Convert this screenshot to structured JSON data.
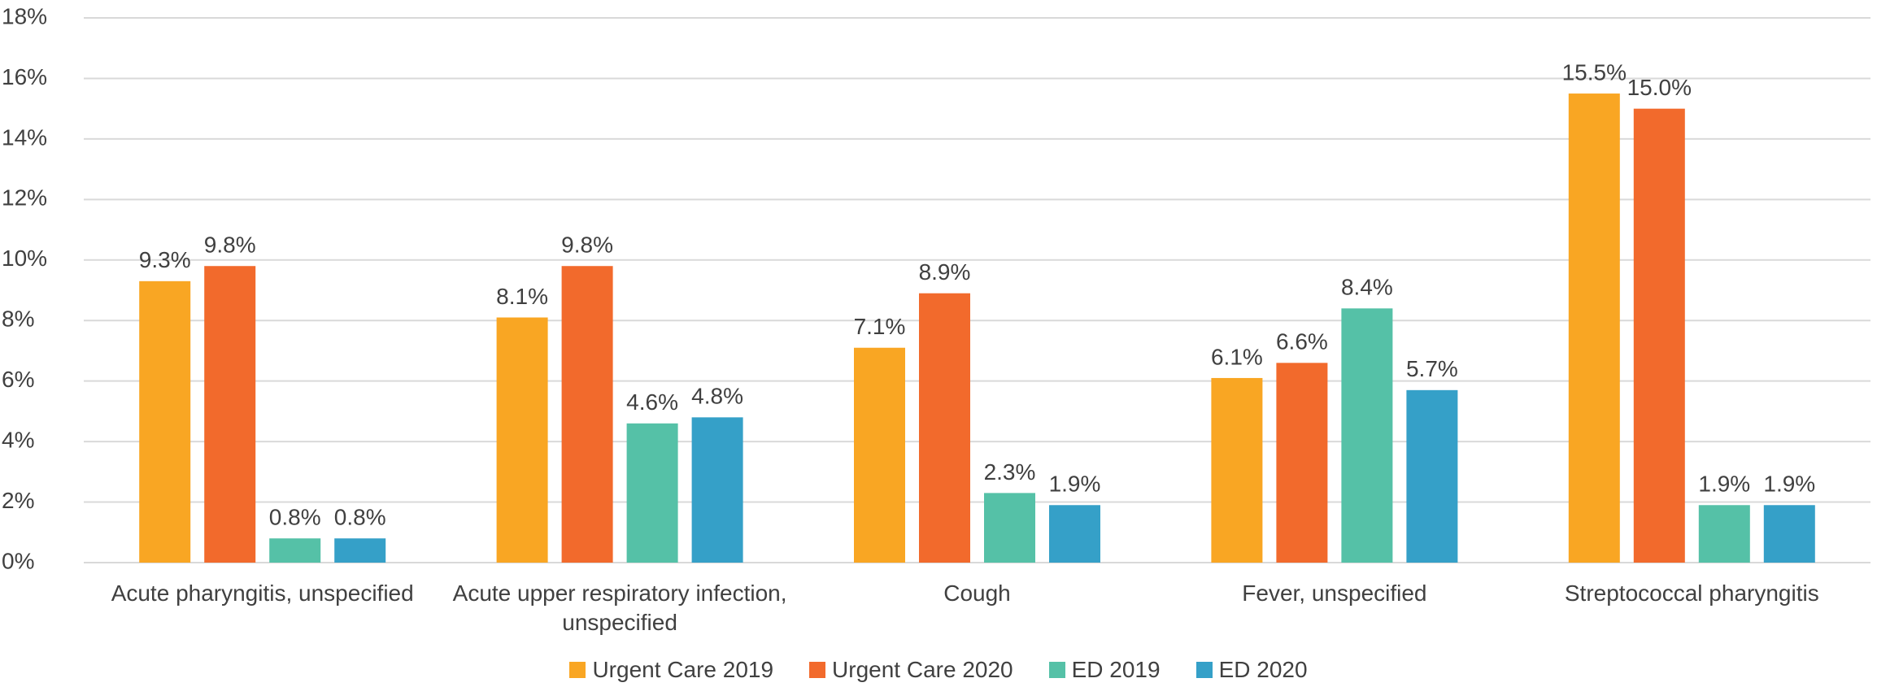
{
  "chart_data": {
    "type": "bar",
    "categories": [
      "Acute pharyngitis, unspecified",
      "Acute upper respiratory infection, unspecified",
      "Cough",
      "Fever, unspecified",
      "Streptococcal pharyngitis"
    ],
    "series": [
      {
        "name": "Urgent Care 2019",
        "color": "#f9a623",
        "values": [
          9.3,
          8.1,
          7.1,
          6.1,
          15.5
        ],
        "value_labels": [
          "9.3%",
          "8.1%",
          "7.1%",
          "6.1%",
          "15.5%"
        ]
      },
      {
        "name": "Urgent Care 2020",
        "color": "#f26a2c",
        "values": [
          9.8,
          9.8,
          8.9,
          6.6,
          15.0
        ],
        "value_labels": [
          "9.8%",
          "9.8%",
          "8.9%",
          "6.6%",
          "15.0%"
        ]
      },
      {
        "name": "ED 2019",
        "color": "#55c1a7",
        "values": [
          0.8,
          4.6,
          2.3,
          8.4,
          1.9
        ],
        "value_labels": [
          "0.8%",
          "4.6%",
          "2.3%",
          "8.4%",
          "1.9%"
        ]
      },
      {
        "name": "ED 2020",
        "color": "#35a0c8",
        "values": [
          0.8,
          4.8,
          1.9,
          5.7,
          1.9
        ],
        "value_labels": [
          "0.8%",
          "4.8%",
          "1.9%",
          "5.7%",
          "1.9%"
        ]
      }
    ],
    "ylim": [
      0,
      18
    ],
    "yticks": [
      {
        "value": 0,
        "label": "0%"
      },
      {
        "value": 2,
        "label": "2%"
      },
      {
        "value": 4,
        "label": "4%"
      },
      {
        "value": 6,
        "label": "6%"
      },
      {
        "value": 8,
        "label": "8%"
      },
      {
        "value": 10,
        "label": "10%"
      },
      {
        "value": 12,
        "label": "12%"
      },
      {
        "value": 14,
        "label": "14%"
      },
      {
        "value": 16,
        "label": "16%"
      },
      {
        "value": 18,
        "label": "18%"
      }
    ],
    "grid": true,
    "legend": "bottom"
  }
}
